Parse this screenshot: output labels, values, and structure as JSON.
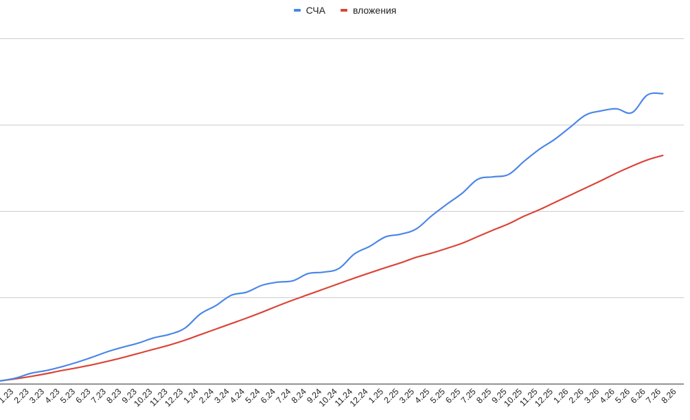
{
  "chart_data": {
    "type": "line",
    "title": "",
    "xlabel": "",
    "ylabel": "",
    "legend_position": "top-center",
    "grid": true,
    "y_ticks_labeled": false,
    "ylim": [
      0,
      100
    ],
    "categories": [
      "1.23",
      "2.23",
      "3.23",
      "4.23",
      "5.23",
      "6.23",
      "7.23",
      "8.23",
      "9.23",
      "10.23",
      "11.23",
      "12.23",
      "1.24",
      "2.24",
      "3.24",
      "4.24",
      "5.24",
      "6.24",
      "7.24",
      "8.24",
      "9.24",
      "10.24",
      "11.24",
      "12.24",
      "1.25",
      "2.25",
      "3.25",
      "4.25",
      "5.25",
      "6.25",
      "7.25",
      "8.25",
      "9.25",
      "10.25",
      "11.25",
      "12.25",
      "1.26",
      "2.26",
      "3.26",
      "4.26",
      "5.26",
      "6.26",
      "7.26",
      "8.26"
    ],
    "series": [
      {
        "name": "СЧА",
        "color": "#4a86e8",
        "values": [
          0.8,
          1.6,
          3.0,
          3.8,
          4.9,
          6.2,
          7.7,
          9.3,
          10.6,
          11.8,
          13.3,
          14.3,
          16.1,
          20.2,
          22.6,
          25.6,
          26.5,
          28.5,
          29.4,
          29.8,
          31.9,
          32.3,
          33.4,
          37.6,
          39.8,
          42.5,
          43.3,
          44.8,
          48.6,
          52.0,
          55.2,
          59.2,
          59.9,
          60.6,
          64.4,
          67.9,
          70.8,
          74.3,
          77.8,
          79.0,
          79.6,
          78.5,
          83.6,
          84.0
        ]
      },
      {
        "name": "вложения",
        "color": "#db4437",
        "values": [
          0.8,
          1.4,
          2.1,
          2.9,
          3.8,
          4.6,
          5.5,
          6.5,
          7.6,
          8.8,
          10.0,
          11.2,
          12.6,
          14.2,
          15.8,
          17.4,
          19.0,
          20.7,
          22.5,
          24.2,
          25.8,
          27.4,
          29.0,
          30.6,
          32.1,
          33.6,
          35.0,
          36.6,
          37.8,
          39.2,
          40.7,
          42.6,
          44.5,
          46.3,
          48.5,
          50.4,
          52.5,
          54.6,
          56.7,
          58.8,
          61.0,
          63.0,
          64.8,
          66.1
        ]
      }
    ]
  }
}
